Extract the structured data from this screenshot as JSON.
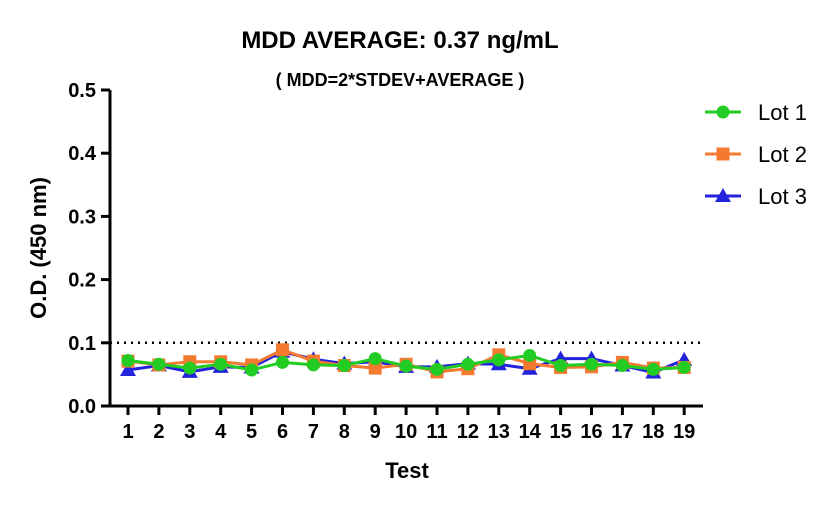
{
  "chart_data": {
    "type": "line",
    "title": "MDD AVERAGE:  0.37 ng/mL",
    "subtitle": "( MDD=2*STDEV+AVERAGE )",
    "xlabel": "Test",
    "ylabel": "O.D. (450 nm)",
    "x": [
      1,
      2,
      3,
      4,
      5,
      6,
      7,
      8,
      9,
      10,
      11,
      12,
      13,
      14,
      15,
      16,
      17,
      18,
      19
    ],
    "ylim": [
      0,
      0.5
    ],
    "yticks": [
      "0.0",
      "0.1",
      "0.2",
      "0.3",
      "0.4",
      "0.5"
    ],
    "reference_line": {
      "y": 0.1,
      "style": "dotted"
    },
    "grid": false,
    "legend_position": "right",
    "series": [
      {
        "name": "Lot 1",
        "color": "#22cc22",
        "marker": "circle",
        "values": [
          0.072,
          0.066,
          0.06,
          0.066,
          0.057,
          0.069,
          0.065,
          0.064,
          0.075,
          0.063,
          0.058,
          0.066,
          0.073,
          0.08,
          0.064,
          0.066,
          0.064,
          0.058,
          0.061
        ]
      },
      {
        "name": "Lot 2",
        "color": "#f47a30",
        "marker": "square",
        "values": [
          0.071,
          0.065,
          0.07,
          0.07,
          0.065,
          0.089,
          0.071,
          0.064,
          0.06,
          0.066,
          0.054,
          0.059,
          0.081,
          0.067,
          0.061,
          0.062,
          0.069,
          0.06,
          0.061
        ]
      },
      {
        "name": "Lot 3",
        "color": "#2323dd",
        "marker": "triangle",
        "values": [
          0.057,
          0.064,
          0.054,
          0.062,
          0.061,
          0.086,
          0.074,
          0.067,
          0.07,
          0.062,
          0.062,
          0.067,
          0.066,
          0.059,
          0.075,
          0.075,
          0.064,
          0.053,
          0.073
        ]
      }
    ]
  }
}
